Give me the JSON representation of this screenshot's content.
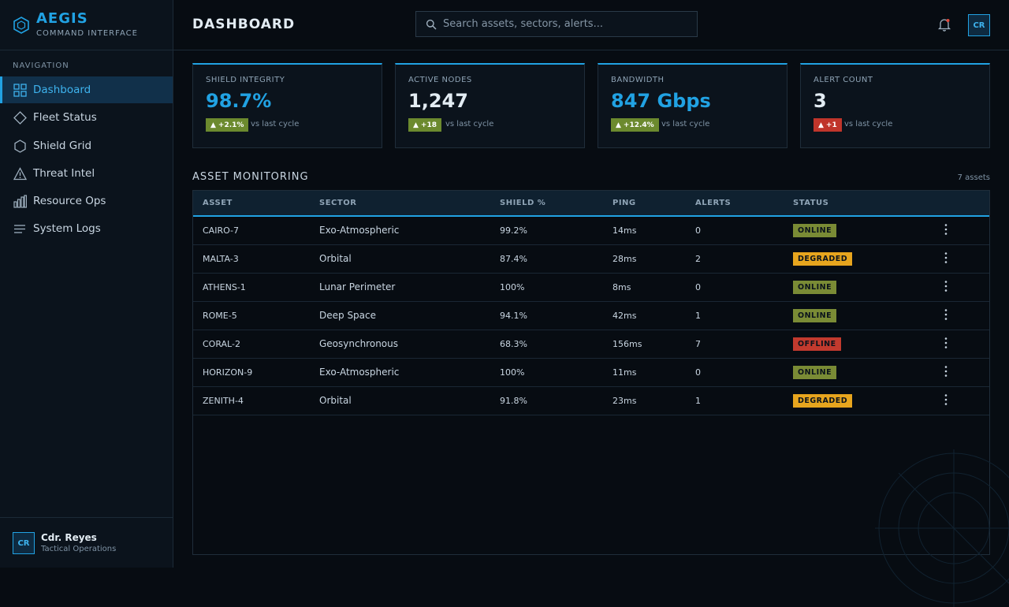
{
  "app": {
    "name": "AEGIS",
    "subtitle": "COMMAND INTERFACE"
  },
  "sidebar": {
    "heading": "NAVIGATION",
    "items": [
      {
        "label": "Dashboard",
        "icon": "grid-icon",
        "active": true
      },
      {
        "label": "Fleet Status",
        "icon": "diamond-icon"
      },
      {
        "label": "Shield Grid",
        "icon": "hexagon-icon"
      },
      {
        "label": "Threat Intel",
        "icon": "warning-triangle-icon"
      },
      {
        "label": "Resource Ops",
        "icon": "bar-chart-icon"
      },
      {
        "label": "System Logs",
        "icon": "lines-icon"
      }
    ]
  },
  "user": {
    "initials": "CR",
    "name": "Cdr. Reyes",
    "role": "Tactical Operations"
  },
  "header": {
    "title": "DASHBOARD",
    "search_placeholder": "Search assets, sectors, alerts..."
  },
  "stats": [
    {
      "label": "SHIELD INTEGRITY",
      "value": "98.7%",
      "delta": "+2.1%",
      "delta_dir": "up",
      "vs": "vs last cycle",
      "value_color": "#21a2e3",
      "delta_color": "#6c8a2e"
    },
    {
      "label": "ACTIVE NODES",
      "value": "1,247",
      "delta": "+18",
      "delta_dir": "up",
      "vs": "vs last cycle",
      "value_color": "#e3ecf3",
      "delta_color": "#6c8a2e"
    },
    {
      "label": "BANDWIDTH",
      "value": "847 Gbps",
      "delta": "+12.4%",
      "delta_dir": "up",
      "vs": "vs last cycle",
      "value_color": "#21a2e3",
      "delta_color": "#6c8a2e"
    },
    {
      "label": "ALERT COUNT",
      "value": "3",
      "delta": "+1",
      "delta_dir": "up",
      "vs": "vs last cycle",
      "value_color": "#e3ecf3",
      "delta_color": "#c0352b"
    }
  ],
  "monitoring": {
    "title": "ASSET MONITORING",
    "count": "7 assets",
    "columns": [
      "ASSET",
      "SECTOR",
      "SHIELD %",
      "PING",
      "ALERTS",
      "STATUS"
    ],
    "rows": [
      {
        "asset": "CAIRO-7",
        "sector": "Exo-Atmospheric",
        "shield": "99.2%",
        "ping": "14ms",
        "alerts": "0",
        "status": "ONLINE"
      },
      {
        "asset": "MALTA-3",
        "sector": "Orbital",
        "shield": "87.4%",
        "ping": "28ms",
        "alerts": "2",
        "status": "DEGRADED"
      },
      {
        "asset": "ATHENS-1",
        "sector": "Lunar Perimeter",
        "shield": "100%",
        "ping": "8ms",
        "alerts": "0",
        "status": "ONLINE"
      },
      {
        "asset": "ROME-5",
        "sector": "Deep Space",
        "shield": "94.1%",
        "ping": "42ms",
        "alerts": "1",
        "status": "ONLINE"
      },
      {
        "asset": "CORAL-2",
        "sector": "Geosynchronous",
        "shield": "68.3%",
        "ping": "156ms",
        "alerts": "7",
        "status": "OFFLINE"
      },
      {
        "asset": "HORIZON-9",
        "sector": "Exo-Atmospheric",
        "shield": "100%",
        "ping": "11ms",
        "alerts": "0",
        "status": "ONLINE"
      },
      {
        "asset": "ZENITH-4",
        "sector": "Orbital",
        "shield": "91.8%",
        "ping": "23ms",
        "alerts": "1",
        "status": "DEGRADED"
      }
    ],
    "status_colors": {
      "ONLINE": "#7a8b35",
      "DEGRADED": "#e7a51e",
      "OFFLINE": "#c23a2e"
    }
  },
  "colors": {
    "accent": "#21a2e3",
    "background": "#070c12",
    "panel": "#0b131c"
  }
}
